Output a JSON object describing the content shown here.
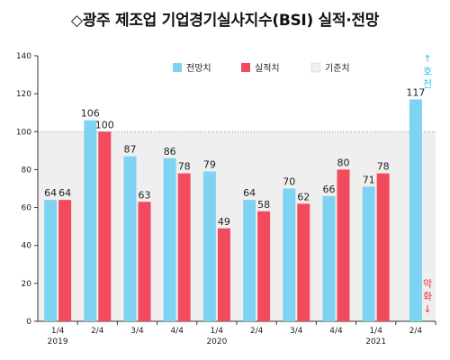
{
  "chart_data": {
    "type": "bar",
    "title": "◇광주 제조업 기업경기실사지수(BSI) 실적·전망",
    "categories": [
      "1/4",
      "2/4",
      "3/4",
      "4/4",
      "1/4",
      "2/4",
      "3/4",
      "4/4",
      "1/4",
      "2/4"
    ],
    "year_labels": [
      {
        "index": 0,
        "label": "2019"
      },
      {
        "index": 4,
        "label": "2020"
      },
      {
        "index": 8,
        "label": "2021"
      }
    ],
    "series": [
      {
        "name": "전망치",
        "color": "#7fd3f2",
        "values": [
          64,
          106,
          87,
          86,
          79,
          64,
          70,
          66,
          71,
          117
        ]
      },
      {
        "name": "실적치",
        "color": "#f24b5e",
        "values": [
          64,
          100,
          63,
          78,
          49,
          58,
          62,
          80,
          78,
          null
        ]
      }
    ],
    "reference": {
      "name": "기준치",
      "value": 100,
      "color": "#efefef"
    },
    "ylim": [
      0,
      140
    ],
    "yticks": [
      0,
      20,
      40,
      60,
      80,
      100,
      120,
      140
    ],
    "annotations": {
      "top": {
        "text": "↑호전",
        "color": "#2bc4e8"
      },
      "bottom": {
        "text": "악화↓",
        "color": "#e8333f"
      }
    },
    "grid": false,
    "legend_position": "top-right"
  }
}
